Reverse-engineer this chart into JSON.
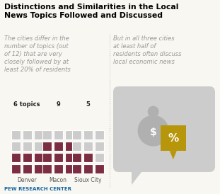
{
  "title_line1": "Distinctions and Similarities in the Local",
  "title_line2": "News Topics Followed and Discussed",
  "left_text": "The cities differ in the\nnumber of topics (out\nof 12) that are very\nclosely followed by at\nleast 20% of residents",
  "right_text": "But in all three cities\nat least half of\nresidents often discuss\nlocal economic news",
  "cities": [
    "Denver",
    "Macon",
    "Sioux City"
  ],
  "topics": [
    6,
    9,
    5
  ],
  "total_squares": 12,
  "grid_cols": 3,
  "grid_rows": 4,
  "active_color": "#7b2d42",
  "inactive_color": "#cccccc",
  "title_color": "#000000",
  "left_text_color": "#999999",
  "right_text_color": "#999999",
  "pew_color": "#1464a0",
  "speech_bubble_color": "#cccccc",
  "bag_color": "#b0b0b0",
  "percent_bubble_color": "#b8960c",
  "background_color": "#f9f7f2",
  "separator_color": "#cccccc"
}
